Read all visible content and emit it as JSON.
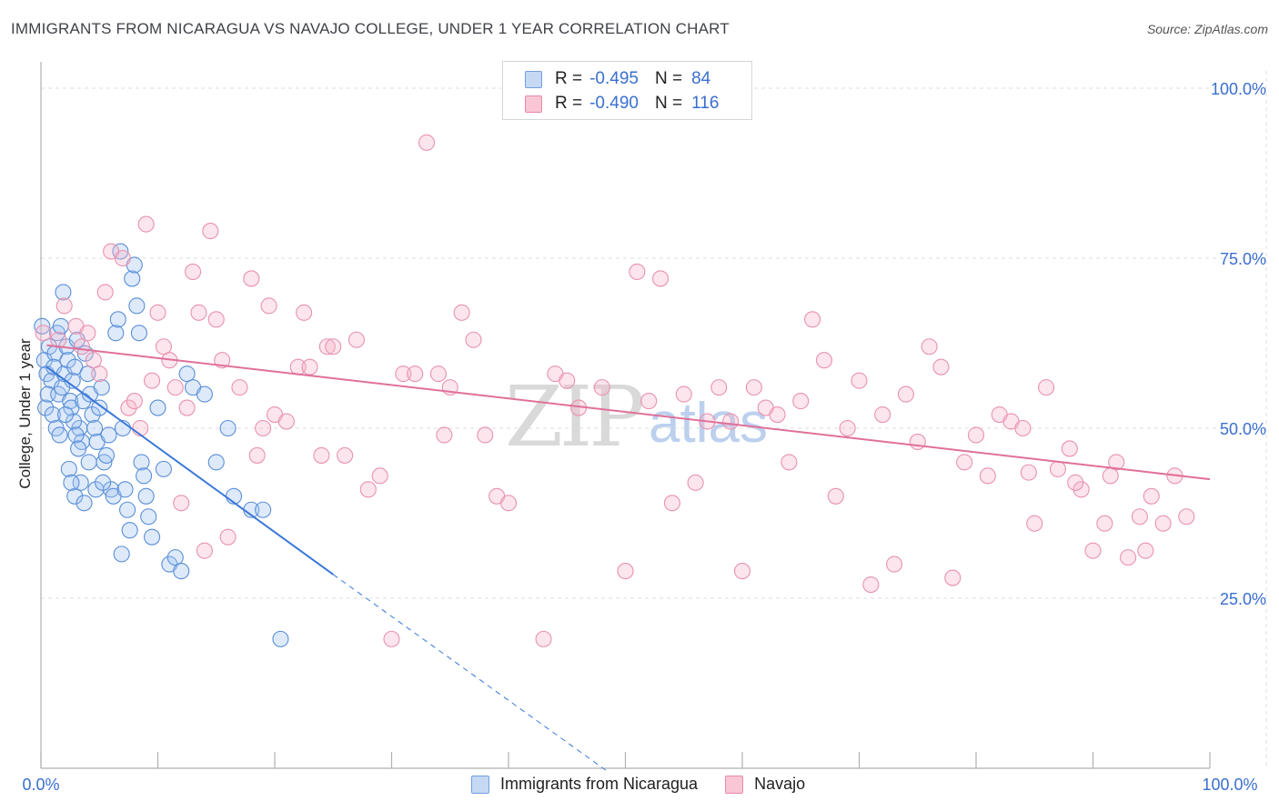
{
  "header": {
    "title": "IMMIGRANTS FROM NICARAGUA VS NAVAJO COLLEGE, UNDER 1 YEAR CORRELATION CHART",
    "source": "Source: ZipAtlas.com"
  },
  "watermark": {
    "part1": "ZIP",
    "part2": "atlas"
  },
  "legend": {
    "rows": [
      {
        "r_label": "R =",
        "r_value": "-0.495",
        "n_label": "N =",
        "n_value": "84",
        "color": "#6f9fe0",
        "fill": "#c5d8f4"
      },
      {
        "r_label": "R =",
        "r_value": "-0.490",
        "n_label": "N =",
        "n_value": "116",
        "color": "#e88aa8",
        "fill": "#f8c6d5"
      }
    ]
  },
  "bottom_legend": {
    "series1": "Immigrants from Nicaragua",
    "series2": "Navajo"
  },
  "colors": {
    "blue": "#3a78d8",
    "pink": "#e0709a",
    "axis_text": "#3a6fd0"
  },
  "chart_data": {
    "type": "scatter",
    "title": "IMMIGRANTS FROM NICARAGUA VS NAVAJO COLLEGE, UNDER 1 YEAR CORRELATION CHART",
    "xlabel": "",
    "ylabel": "College, Under 1 year",
    "xlim": [
      0,
      100
    ],
    "ylim": [
      0,
      100
    ],
    "x_tick_labels": [
      "0.0%",
      "100.0%"
    ],
    "y_tick_labels": [
      "100.0%",
      "75.0%",
      "50.0%",
      "25.0%"
    ],
    "y_ticks": [
      100,
      75,
      50,
      25
    ],
    "series": [
      {
        "name": "Immigrants from Nicaragua",
        "R": -0.495,
        "N": 84,
        "trend": {
          "x0": 0.5,
          "y0": 59.0,
          "x1": 25.0,
          "y1": 28.5,
          "dash_to_x": 48.5,
          "dash_to_y": -0.5
        },
        "points": [
          [
            0.1,
            65
          ],
          [
            0.3,
            60
          ],
          [
            0.5,
            58
          ],
          [
            0.7,
            62
          ],
          [
            0.9,
            57
          ],
          [
            0.4,
            53
          ],
          [
            0.6,
            55
          ],
          [
            1.0,
            52
          ],
          [
            1.2,
            61
          ],
          [
            1.4,
            64
          ],
          [
            1.1,
            59
          ],
          [
            1.5,
            55
          ],
          [
            1.3,
            50
          ],
          [
            1.8,
            56
          ],
          [
            2.0,
            58
          ],
          [
            2.2,
            62
          ],
          [
            1.7,
            65
          ],
          [
            1.9,
            70
          ],
          [
            2.3,
            60
          ],
          [
            2.5,
            54
          ],
          [
            2.7,
            57
          ],
          [
            2.9,
            59
          ],
          [
            3.1,
            63
          ],
          [
            3.3,
            50
          ],
          [
            3.5,
            48
          ],
          [
            2.6,
            53
          ],
          [
            2.8,
            51
          ],
          [
            3.0,
            49
          ],
          [
            3.2,
            47
          ],
          [
            3.6,
            54
          ],
          [
            3.8,
            61
          ],
          [
            4.0,
            58
          ],
          [
            4.2,
            55
          ],
          [
            4.4,
            52
          ],
          [
            4.6,
            50
          ],
          [
            4.8,
            48
          ],
          [
            5.0,
            53
          ],
          [
            5.2,
            56
          ],
          [
            5.4,
            45
          ],
          [
            5.6,
            46
          ],
          [
            5.8,
            49
          ],
          [
            6.0,
            41
          ],
          [
            6.2,
            40
          ],
          [
            6.4,
            64
          ],
          [
            6.6,
            66
          ],
          [
            6.8,
            76
          ],
          [
            7.0,
            50
          ],
          [
            7.2,
            41
          ],
          [
            7.4,
            38
          ],
          [
            7.6,
            35
          ],
          [
            2.4,
            44
          ],
          [
            2.9,
            40
          ],
          [
            3.4,
            42
          ],
          [
            4.1,
            45
          ],
          [
            4.7,
            41
          ],
          [
            5.3,
            42
          ],
          [
            2.1,
            52
          ],
          [
            2.6,
            42
          ],
          [
            3.7,
            39
          ],
          [
            1.6,
            49
          ],
          [
            7.8,
            72
          ],
          [
            8.0,
            74
          ],
          [
            8.2,
            68
          ],
          [
            8.4,
            64
          ],
          [
            8.6,
            45
          ],
          [
            8.8,
            43
          ],
          [
            9.0,
            40
          ],
          [
            9.2,
            37
          ],
          [
            10,
            53
          ],
          [
            10.5,
            44
          ],
          [
            11,
            30
          ],
          [
            11.5,
            31
          ],
          [
            12,
            29
          ],
          [
            12.5,
            58
          ],
          [
            13,
            56
          ],
          [
            14,
            55
          ],
          [
            15,
            45
          ],
          [
            16,
            50
          ],
          [
            16.5,
            40
          ],
          [
            18,
            38
          ],
          [
            19,
            38
          ],
          [
            20.5,
            19
          ],
          [
            9.5,
            34
          ],
          [
            6.9,
            31.5
          ]
        ]
      },
      {
        "name": "Navajo",
        "R": -0.49,
        "N": 116,
        "trend": {
          "x0": 0.5,
          "y0": 62.2,
          "x1": 100,
          "y1": 42.5
        },
        "points": [
          [
            0.2,
            64
          ],
          [
            1.5,
            63
          ],
          [
            2.0,
            68
          ],
          [
            3.0,
            65
          ],
          [
            3.5,
            62
          ],
          [
            4.0,
            64
          ],
          [
            4.5,
            60
          ],
          [
            5.0,
            58
          ],
          [
            5.5,
            70
          ],
          [
            6.0,
            76
          ],
          [
            7.0,
            75
          ],
          [
            7.5,
            53
          ],
          [
            8.0,
            54
          ],
          [
            8.5,
            50
          ],
          [
            9.0,
            80
          ],
          [
            9.5,
            57
          ],
          [
            10,
            67
          ],
          [
            10.5,
            62
          ],
          [
            11,
            60
          ],
          [
            11.5,
            56
          ],
          [
            12,
            39
          ],
          [
            12.5,
            53
          ],
          [
            13,
            73
          ],
          [
            13.5,
            67
          ],
          [
            14,
            32
          ],
          [
            14.5,
            79
          ],
          [
            15,
            66
          ],
          [
            15.5,
            60
          ],
          [
            16,
            34
          ],
          [
            17,
            56
          ],
          [
            18,
            72
          ],
          [
            18.5,
            46
          ],
          [
            19,
            50
          ],
          [
            19.5,
            68
          ],
          [
            20,
            52
          ],
          [
            21,
            51
          ],
          [
            22,
            59
          ],
          [
            22.5,
            67
          ],
          [
            23,
            59
          ],
          [
            24,
            46
          ],
          [
            24.5,
            62
          ],
          [
            25,
            62
          ],
          [
            26,
            46
          ],
          [
            27,
            63
          ],
          [
            28,
            41
          ],
          [
            29,
            43
          ],
          [
            30,
            19
          ],
          [
            31,
            58
          ],
          [
            32,
            58
          ],
          [
            33,
            92
          ],
          [
            34,
            58
          ],
          [
            34.5,
            49
          ],
          [
            35,
            56
          ],
          [
            36,
            67
          ],
          [
            37,
            63
          ],
          [
            38,
            49
          ],
          [
            39,
            40
          ],
          [
            40,
            39
          ],
          [
            43,
            19
          ],
          [
            44,
            58
          ],
          [
            45,
            57
          ],
          [
            46,
            53
          ],
          [
            48,
            56
          ],
          [
            50,
            29
          ],
          [
            51,
            73
          ],
          [
            52,
            54
          ],
          [
            53,
            72
          ],
          [
            54,
            39
          ],
          [
            55,
            55
          ],
          [
            56,
            42
          ],
          [
            57,
            51
          ],
          [
            58,
            56
          ],
          [
            59,
            51
          ],
          [
            60,
            29
          ],
          [
            61,
            56
          ],
          [
            62,
            53
          ],
          [
            63,
            52
          ],
          [
            64,
            45
          ],
          [
            65,
            54
          ],
          [
            66,
            66
          ],
          [
            67,
            60
          ],
          [
            68,
            40
          ],
          [
            69,
            50
          ],
          [
            70,
            57
          ],
          [
            71,
            27
          ],
          [
            72,
            52
          ],
          [
            73,
            30
          ],
          [
            74,
            55
          ],
          [
            75,
            48
          ],
          [
            76,
            62
          ],
          [
            77,
            59
          ],
          [
            78,
            28
          ],
          [
            79,
            45
          ],
          [
            80,
            49
          ],
          [
            81,
            43
          ],
          [
            82,
            52
          ],
          [
            83,
            51
          ],
          [
            84,
            50
          ],
          [
            85,
            36
          ],
          [
            86,
            56
          ],
          [
            87,
            44
          ],
          [
            88,
            47
          ],
          [
            89,
            41
          ],
          [
            90,
            32
          ],
          [
            91,
            36
          ],
          [
            92,
            45
          ],
          [
            93,
            31
          ],
          [
            94,
            37
          ],
          [
            95,
            40
          ],
          [
            96,
            36
          ],
          [
            97,
            43
          ],
          [
            98,
            37
          ],
          [
            84.5,
            43.5
          ],
          [
            88.5,
            42
          ],
          [
            91.5,
            43
          ],
          [
            94.5,
            32
          ]
        ]
      }
    ]
  }
}
